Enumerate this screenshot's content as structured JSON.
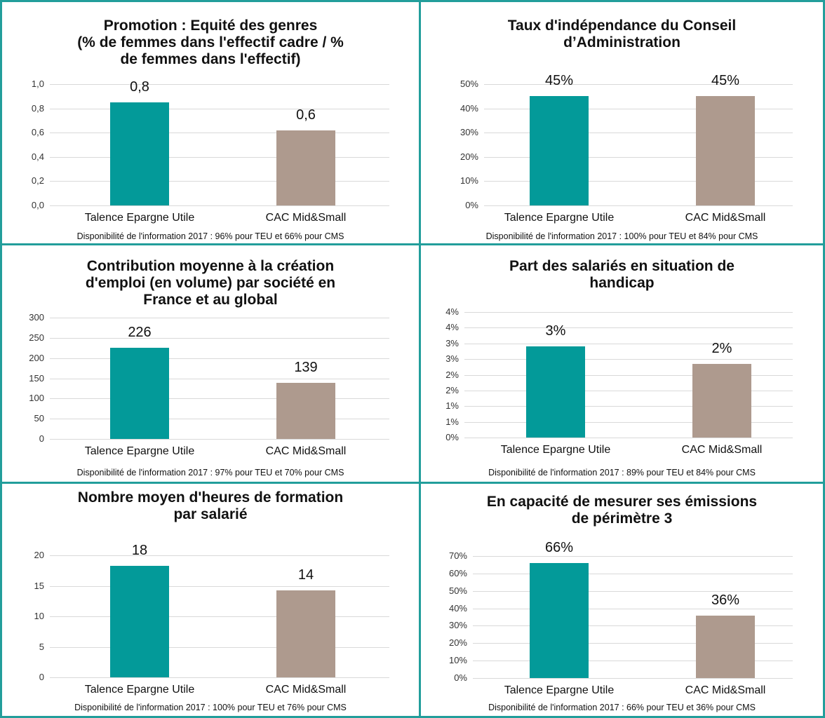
{
  "colors": {
    "border": "#229e9b",
    "teu": "#039a99",
    "cms": "#ae9a8e"
  },
  "chart_data": [
    {
      "type": "bar",
      "title": "Promotion : Equité des genres (% de femmes dans l'effectif cadre / % de femmes dans l'effectif)",
      "title_lines": [
        "Promotion : Equité des genres",
        "(% de femmes dans l'effectif cadre / %",
        "de femmes dans l'effectif)"
      ],
      "categories": [
        "Talence Epargne Utile",
        "CAC Mid&Small"
      ],
      "values": [
        0.85,
        0.62
      ],
      "data_labels": [
        "0,8",
        "0,6"
      ],
      "ylim": [
        0,
        1.0
      ],
      "yticks": [
        0,
        0.2,
        0.4,
        0.6,
        0.8,
        1.0
      ],
      "ytick_labels": [
        "0,0",
        "0,2",
        "0,4",
        "0,6",
        "0,8",
        "1,0"
      ],
      "grid": true,
      "note": "Disponibilité de l'information 2017 : 96% pour TEU et 66% pour CMS"
    },
    {
      "type": "bar",
      "title": "Taux d'indépendance du Conseil d’Administration",
      "title_lines": [
        "Taux d'indépendance du Conseil",
        "d’Administration"
      ],
      "categories": [
        "Talence Epargne Utile",
        "CAC Mid&Small"
      ],
      "values": [
        45,
        45
      ],
      "data_labels": [
        "45%",
        "45%"
      ],
      "ylim": [
        0,
        50
      ],
      "yticks": [
        0,
        10,
        20,
        30,
        40,
        50
      ],
      "ytick_labels": [
        "0%",
        "10%",
        "20%",
        "30%",
        "40%",
        "50%"
      ],
      "grid": true,
      "note": "Disponibilité de l'information 2017 : 100% pour TEU et 84% pour CMS"
    },
    {
      "type": "bar",
      "title": "Contribution moyenne à la création d'emploi (en volume) par société en France et au global",
      "title_lines": [
        "Contribution moyenne à la création",
        "d'emploi (en volume) par société en",
        "France et au global"
      ],
      "categories": [
        "Talence Epargne Utile",
        "CAC Mid&Small"
      ],
      "values": [
        226,
        139
      ],
      "data_labels": [
        "226",
        "139"
      ],
      "ylim": [
        0,
        300
      ],
      "yticks": [
        0,
        50,
        100,
        150,
        200,
        250,
        300
      ],
      "ytick_labels": [
        "0",
        "50",
        "100",
        "150",
        "200",
        "250",
        "300"
      ],
      "grid": true,
      "note": "Disponibilité de l'information 2017 : 97% pour TEU et 70% pour CMS"
    },
    {
      "type": "bar",
      "title": "Part des salariés en situation de handicap",
      "title_lines": [
        "Part des salariés en situation de",
        "handicap"
      ],
      "categories": [
        "Talence Epargne Utile",
        "CAC Mid&Small"
      ],
      "values": [
        2.9,
        2.35
      ],
      "data_labels": [
        "3%",
        "2%"
      ],
      "ylim": [
        0,
        4.0
      ],
      "yticks": [
        0,
        0.5,
        1.0,
        1.5,
        2.0,
        2.5,
        3.0,
        3.5,
        4.0
      ],
      "ytick_labels": [
        "0%",
        "1%",
        "1%",
        "2%",
        "2%",
        "3%",
        "3%",
        "4%",
        "4%"
      ],
      "grid": true,
      "note": "Disponibilité de l'information 2017 : 89% pour TEU et 84% pour CMS"
    },
    {
      "type": "bar",
      "title": "Nombre moyen d'heures de formation par salarié",
      "title_lines": [
        "Nombre moyen d'heures de formation",
        "par salarié"
      ],
      "categories": [
        "Talence Epargne Utile",
        "CAC Mid&Small"
      ],
      "values": [
        18.3,
        14.2
      ],
      "data_labels": [
        "18",
        "14"
      ],
      "ylim": [
        0,
        20
      ],
      "yticks": [
        0,
        5,
        10,
        15,
        20
      ],
      "ytick_labels": [
        "0",
        "5",
        "10",
        "15",
        "20"
      ],
      "grid": true,
      "note": "Disponibilité de l'information 2017 : 100% pour TEU et 76% pour CMS"
    },
    {
      "type": "bar",
      "title": "En capacité de mesurer ses émissions de périmètre 3",
      "title_lines": [
        "En capacité de mesurer ses émissions",
        "de périmètre 3"
      ],
      "categories": [
        "Talence Epargne Utile",
        "CAC Mid&Small"
      ],
      "values": [
        66,
        36
      ],
      "data_labels": [
        "66%",
        "36%"
      ],
      "ylim": [
        0,
        70
      ],
      "yticks": [
        0,
        10,
        20,
        30,
        40,
        50,
        60,
        70
      ],
      "ytick_labels": [
        "0%",
        "10%",
        "20%",
        "30%",
        "40%",
        "50%",
        "60%",
        "70%"
      ],
      "grid": true,
      "note": "Disponibilité de l'information 2017 : 66% pour TEU et 36% pour CMS"
    }
  ]
}
